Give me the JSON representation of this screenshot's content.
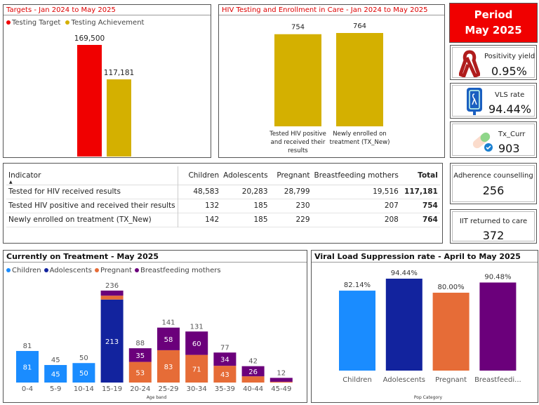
{
  "period": {
    "label": "Period",
    "value": "May 2025",
    "color": "#f00000"
  },
  "targets": {
    "title": "Targets - Jan 2024 to May 2025",
    "chart_data": {
      "type": "bar",
      "series": [
        {
          "name": "Testing Target",
          "value": 169500,
          "label": "169,500",
          "color": "#f00000"
        },
        {
          "name": "Testing Achievement",
          "value": 117181,
          "label": "117,181",
          "color": "#d4b000"
        }
      ]
    }
  },
  "enrollment": {
    "title": "HIV Testing and Enrollment in Care - Jan 2024 to May 2025",
    "chart_data": {
      "type": "bar",
      "categories": [
        "Tested HIV positive and received their results",
        "Newly enrolled on treatment (TX_New)"
      ],
      "category_lines": [
        [
          "Tested HIV positive",
          "and received their",
          "results"
        ],
        [
          "Newly enrolled on",
          "treatment (TX_New)"
        ]
      ],
      "values": [
        754,
        764
      ],
      "color": "#d4b000"
    }
  },
  "cards": [
    {
      "label": "Positivity yield",
      "value": "0.95%",
      "icon": "red-ribbon-icon"
    },
    {
      "label": "VLS rate",
      "value": "94.44%",
      "icon": "iv-bag-ribbon-icon"
    },
    {
      "label": "Tx_Curr",
      "value": "903",
      "icon": "pill-check-icon"
    },
    {
      "label": "Adherence counselling",
      "value": "256"
    },
    {
      "label": "IIT returned to care",
      "value": "372"
    }
  ],
  "table": {
    "headers": [
      "Indicator",
      "Children",
      "Adolescents",
      "Pregnant",
      "Breastfeeding mothers",
      "Total"
    ],
    "rows": [
      [
        "Tested for HIV received results",
        "48,583",
        "20,283",
        "28,799",
        "19,516",
        "117,181"
      ],
      [
        "Tested HIV positive and received their results",
        "132",
        "185",
        "230",
        "207",
        "754"
      ],
      [
        "Newly enrolled on treatment (TX_New)",
        "142",
        "185",
        "229",
        "208",
        "764"
      ]
    ]
  },
  "treatment": {
    "title": "Currently on Treatment - May 2025",
    "chart_data": {
      "type": "bar",
      "stacked": true,
      "xlabel": "Age band",
      "categories": [
        "0-4",
        "5-9",
        "10-14",
        "15-19",
        "20-24",
        "25-29",
        "30-34",
        "35-39",
        "40-44",
        "45-49"
      ],
      "series": [
        {
          "name": "Children",
          "color": "#1a8cff",
          "values": [
            81,
            45,
            50,
            0,
            0,
            0,
            0,
            0,
            0,
            0
          ]
        },
        {
          "name": "Adolescents",
          "color": "#12239e",
          "values": [
            0,
            0,
            0,
            213,
            0,
            0,
            0,
            0,
            0,
            0
          ]
        },
        {
          "name": "Pregnant",
          "color": "#e66c37",
          "values": [
            0,
            0,
            0,
            10,
            53,
            83,
            71,
            43,
            16,
            2
          ]
        },
        {
          "name": "Breastfeeding mothers",
          "color": "#6b007b",
          "values": [
            0,
            0,
            0,
            13,
            35,
            58,
            60,
            34,
            26,
            10
          ]
        }
      ],
      "totals": [
        81,
        45,
        50,
        236,
        88,
        141,
        131,
        77,
        42,
        12
      ]
    }
  },
  "vls": {
    "title": "Viral Load Suppression rate - April to May 2025",
    "chart_data": {
      "type": "bar",
      "xlabel": "Pop Category",
      "categories": [
        "Children",
        "Adolescents",
        "Pregnant",
        "Breastfeedi..."
      ],
      "values": [
        82.14,
        94.44,
        80.0,
        90.48
      ],
      "labels": [
        "82.14%",
        "94.44%",
        "80.00%",
        "90.48%"
      ],
      "colors": [
        "#1a8cff",
        "#12239e",
        "#e66c37",
        "#6b007b"
      ]
    }
  }
}
